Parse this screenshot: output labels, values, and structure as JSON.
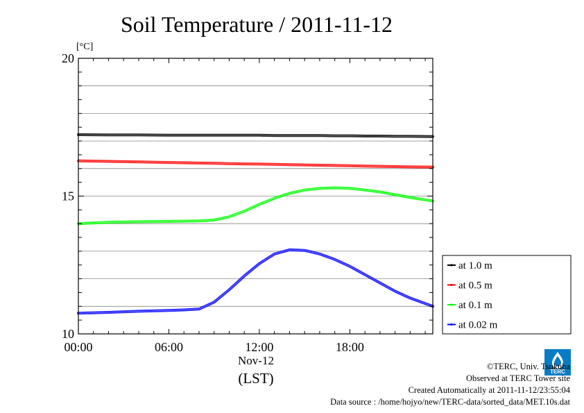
{
  "chart_data": {
    "type": "line",
    "title": "Soil Temperature / 2011-11-12",
    "ylabel": "[°C]",
    "xlabel": "(LST)",
    "date_label": "Nov-12",
    "xlim": [
      0,
      23.5
    ],
    "ylim": [
      10,
      20
    ],
    "x_ticks": [
      {
        "value": 0,
        "label": "00:00"
      },
      {
        "value": 6,
        "label": "06:00"
      },
      {
        "value": 12,
        "label": "12:00"
      },
      {
        "value": 18,
        "label": "18:00"
      }
    ],
    "y_ticks": [
      {
        "value": 10,
        "label": "10"
      },
      {
        "value": 15,
        "label": "15"
      },
      {
        "value": 20,
        "label": "20"
      }
    ],
    "grid": true,
    "legend_position": "right",
    "x": [
      0,
      2,
      4,
      6,
      7,
      8,
      9,
      10,
      11,
      12,
      13,
      14,
      15,
      16,
      17,
      18,
      19,
      20,
      21,
      22,
      23.5
    ],
    "series": [
      {
        "name": "at 1.0 m",
        "color": "#000000",
        "values": [
          17.23,
          17.22,
          17.22,
          17.21,
          17.21,
          17.21,
          17.21,
          17.21,
          17.21,
          17.21,
          17.2,
          17.2,
          17.2,
          17.2,
          17.19,
          17.19,
          17.18,
          17.18,
          17.17,
          17.17,
          17.16
        ]
      },
      {
        "name": "at 0.5 m",
        "color": "#ff0000",
        "values": [
          16.28,
          16.26,
          16.24,
          16.22,
          16.21,
          16.2,
          16.19,
          16.18,
          16.17,
          16.16,
          16.15,
          16.14,
          16.13,
          16.12,
          16.11,
          16.1,
          16.09,
          16.08,
          16.07,
          16.06,
          16.05
        ]
      },
      {
        "name": "at 0.1 m",
        "color": "#00ff00",
        "values": [
          14.0,
          14.05,
          14.07,
          14.08,
          14.09,
          14.1,
          14.13,
          14.25,
          14.45,
          14.7,
          14.92,
          15.1,
          15.22,
          15.28,
          15.3,
          15.28,
          15.22,
          15.15,
          15.05,
          14.95,
          14.82
        ]
      },
      {
        "name": "at 0.02 m",
        "color": "#0000ff",
        "values": [
          10.75,
          10.78,
          10.82,
          10.85,
          10.87,
          10.9,
          11.15,
          11.6,
          12.1,
          12.55,
          12.9,
          13.05,
          13.03,
          12.9,
          12.7,
          12.45,
          12.15,
          11.85,
          11.55,
          11.3,
          11.0
        ]
      }
    ]
  },
  "footer": {
    "credit": "©TERC, Univ. Tsukuba",
    "observed": "Observed at TERC Tower site",
    "created": "Created Automatically at 2011-11-12/23:55:04",
    "source": "Data source : /home/hojyo/new/TERC-data/sorted_data/MET.10s.dat"
  },
  "logo": {
    "text": "TERC",
    "color": "#0a7cc5"
  }
}
